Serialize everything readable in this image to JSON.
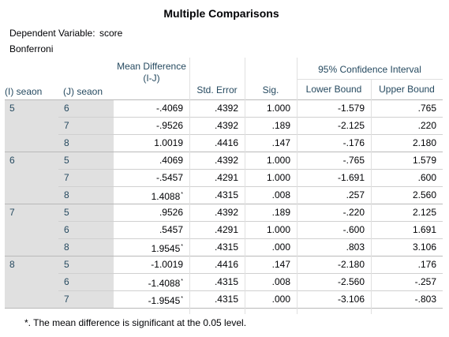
{
  "title": "Multiple Comparisons",
  "dependent_variable_label": "Dependent Variable:",
  "dependent_variable_value": "score",
  "method": "Bonferroni",
  "headers": {
    "i": "(I) seaon",
    "j": "(J) seaon",
    "mean_diff": "Mean Difference (I-J)",
    "std_error": "Std. Error",
    "sig": "Sig.",
    "ci_group": "95% Confidence Interval",
    "lower": "Lower Bound",
    "upper": "Upper Bound"
  },
  "groups": [
    {
      "i": "5",
      "rows": [
        {
          "j": "6",
          "mean_diff": "-.4069",
          "star": false,
          "std_error": ".4392",
          "sig": "1.000",
          "lower": "-1.579",
          "upper": ".765"
        },
        {
          "j": "7",
          "mean_diff": "-.9526",
          "star": false,
          "std_error": ".4392",
          "sig": ".189",
          "lower": "-2.125",
          "upper": ".220"
        },
        {
          "j": "8",
          "mean_diff": "1.0019",
          "star": false,
          "std_error": ".4416",
          "sig": ".147",
          "lower": "-.176",
          "upper": "2.180"
        }
      ]
    },
    {
      "i": "6",
      "rows": [
        {
          "j": "5",
          "mean_diff": ".4069",
          "star": false,
          "std_error": ".4392",
          "sig": "1.000",
          "lower": "-.765",
          "upper": "1.579"
        },
        {
          "j": "7",
          "mean_diff": "-.5457",
          "star": false,
          "std_error": ".4291",
          "sig": "1.000",
          "lower": "-1.691",
          "upper": ".600"
        },
        {
          "j": "8",
          "mean_diff": "1.4088",
          "star": true,
          "std_error": ".4315",
          "sig": ".008",
          "lower": ".257",
          "upper": "2.560"
        }
      ]
    },
    {
      "i": "7",
      "rows": [
        {
          "j": "5",
          "mean_diff": ".9526",
          "star": false,
          "std_error": ".4392",
          "sig": ".189",
          "lower": "-.220",
          "upper": "2.125"
        },
        {
          "j": "6",
          "mean_diff": ".5457",
          "star": false,
          "std_error": ".4291",
          "sig": "1.000",
          "lower": "-.600",
          "upper": "1.691"
        },
        {
          "j": "8",
          "mean_diff": "1.9545",
          "star": true,
          "std_error": ".4315",
          "sig": ".000",
          "lower": ".803",
          "upper": "3.106"
        }
      ]
    },
    {
      "i": "8",
      "rows": [
        {
          "j": "5",
          "mean_diff": "-1.0019",
          "star": false,
          "std_error": ".4416",
          "sig": ".147",
          "lower": "-2.180",
          "upper": ".176"
        },
        {
          "j": "6",
          "mean_diff": "-1.4088",
          "star": true,
          "std_error": ".4315",
          "sig": ".008",
          "lower": "-2.560",
          "upper": "-.257"
        },
        {
          "j": "7",
          "mean_diff": "-1.9545",
          "star": true,
          "std_error": ".4315",
          "sig": ".000",
          "lower": "-3.106",
          "upper": "-.803"
        }
      ]
    }
  ],
  "star_symbol": "*",
  "footnote": "*. The mean difference is significant at the 0.05 level."
}
